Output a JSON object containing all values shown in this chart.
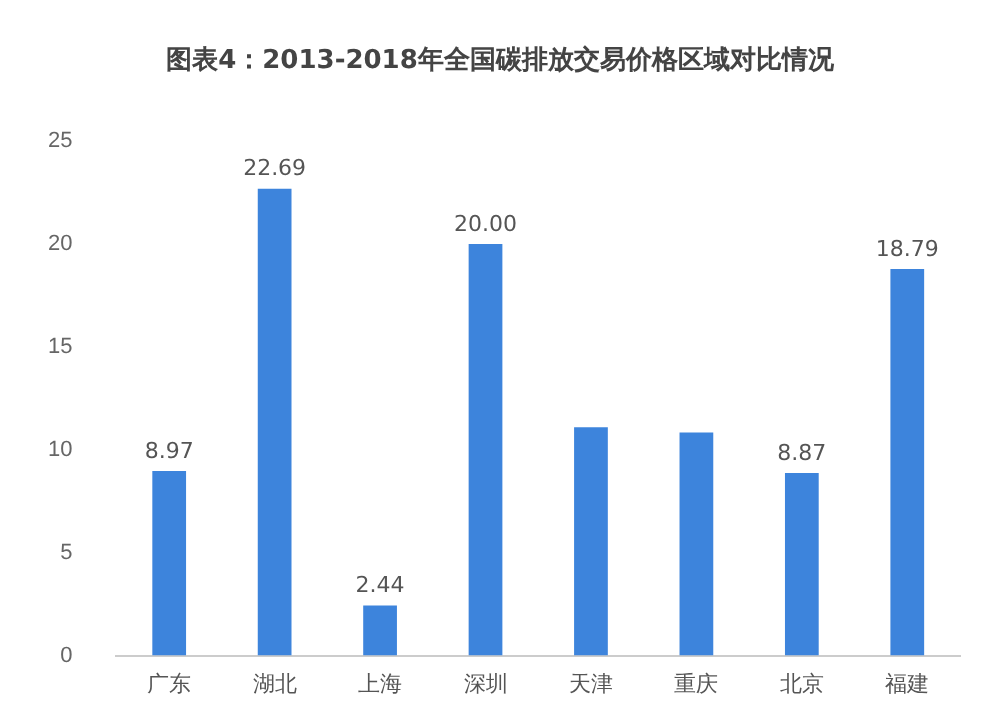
{
  "chart_data": {
    "type": "bar",
    "title": "图表4：2013-2018年全国碳排放交易价格区域对比情况",
    "categories": [
      "广东",
      "湖北",
      "上海",
      "深圳",
      "天津",
      "重庆",
      "北京",
      "福建"
    ],
    "values": [
      8.97,
      22.69,
      2.44,
      20.0,
      11.1,
      10.84,
      8.87,
      18.79
    ],
    "value_labels": [
      "8.97",
      "22.69",
      "2.44",
      "20.00",
      null,
      null,
      "8.87",
      "18.79"
    ],
    "color": "#3d84dc",
    "ylim": [
      0,
      25
    ],
    "yticks": [
      0,
      5,
      10,
      15,
      20,
      25
    ],
    "grid": false,
    "legend": false
  }
}
